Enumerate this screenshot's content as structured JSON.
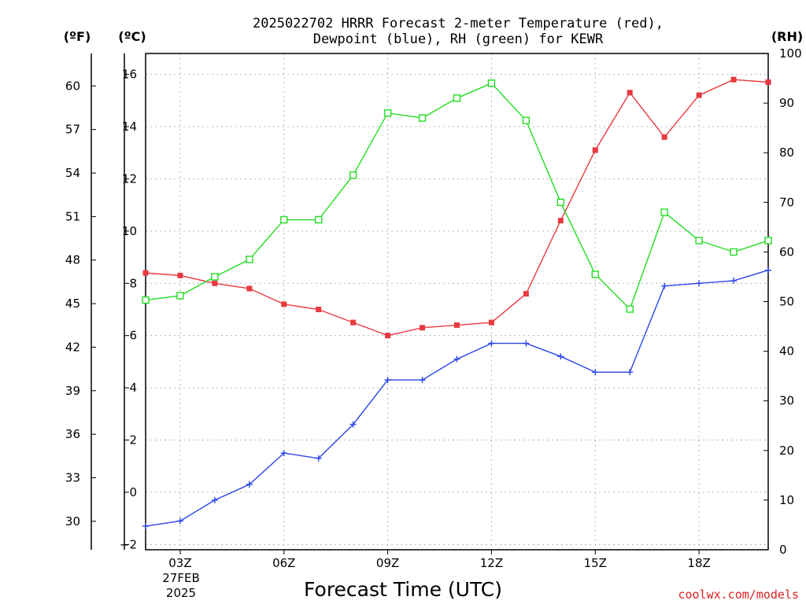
{
  "chart_data": {
    "type": "line",
    "title_line1": "2025022702 HRRR Forecast 2-meter Temperature (red),",
    "title_line2": "Dewpoint (blue), RH (green) for KEWR",
    "xlabel": "Forecast Time (UTC)",
    "unit_f": "(ºF)",
    "unit_c": "(ºC)",
    "unit_rh": "(RH)",
    "credit": "coolwx.com/models",
    "credit_color": "#dd2020",
    "x_hours": [
      2,
      3,
      4,
      5,
      6,
      7,
      8,
      9,
      10,
      11,
      12,
      13,
      14,
      15,
      16,
      17,
      18,
      19,
      20
    ],
    "xlim": [
      2,
      20
    ],
    "x_tick_hours": [
      3,
      6,
      9,
      12,
      15,
      18
    ],
    "x_tick_labels": [
      "03Z",
      "06Z",
      "09Z",
      "12Z",
      "15Z",
      "18Z"
    ],
    "date_label_line1": "27FEB",
    "date_label_line2": "2025",
    "c_axis": {
      "ylim": [
        -2.2,
        16.8
      ],
      "ticks": [
        -2,
        0,
        2,
        4,
        6,
        8,
        10,
        12,
        14,
        16
      ]
    },
    "f_axis": {
      "ticks": [
        30,
        33,
        36,
        39,
        42,
        45,
        48,
        51,
        54,
        57,
        60
      ]
    },
    "rh_axis": {
      "ylim": [
        0,
        100
      ],
      "ticks": [
        0,
        10,
        20,
        30,
        40,
        50,
        60,
        70,
        80,
        90,
        100
      ]
    },
    "series": [
      {
        "name": "Temperature (red)",
        "axis": "C",
        "color": "#e8393f",
        "marker": "filled-square",
        "values": [
          8.4,
          8.3,
          8.0,
          7.8,
          7.2,
          7.0,
          6.5,
          6.0,
          6.3,
          6.4,
          6.5,
          7.6,
          10.4,
          13.1,
          15.3,
          13.6,
          15.2,
          15.8,
          15.7
        ]
      },
      {
        "name": "Dewpoint (blue)",
        "axis": "C",
        "color": "#2b45e6",
        "marker": "plus",
        "values": [
          -1.3,
          -1.1,
          -0.3,
          0.3,
          1.5,
          1.3,
          2.6,
          4.3,
          4.3,
          5.1,
          5.7,
          5.7,
          5.2,
          4.6,
          4.6,
          7.9,
          8.0,
          8.1,
          8.5
        ]
      },
      {
        "name": "RH (green)",
        "axis": "RH",
        "color": "#22dd22",
        "marker": "open-square",
        "values": [
          50.3,
          51.2,
          55.0,
          58.5,
          66.5,
          66.5,
          75.5,
          88.0,
          87.0,
          91.0,
          94.0,
          86.5,
          70.0,
          55.5,
          48.5,
          68.0,
          62.3,
          60.0,
          62.3
        ]
      }
    ]
  }
}
